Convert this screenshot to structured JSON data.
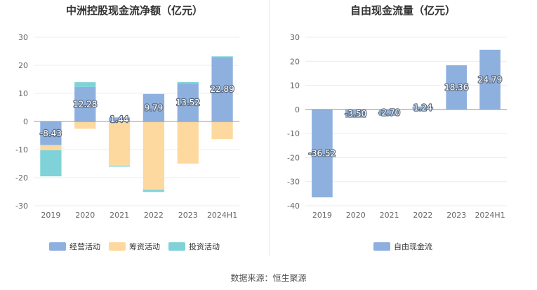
{
  "colors": {
    "operating": "#8eb0de",
    "financing": "#fdd9a0",
    "investing": "#7fd3d8",
    "free_cash_flow": "#8eb0de",
    "grid": "#ececec",
    "axis_text": "#666666"
  },
  "source": "数据来源：恒生聚源",
  "chart_data": [
    {
      "type": "bar",
      "stacked": true,
      "title": "中洲控股现金流净额（亿元）",
      "categories": [
        "2019",
        "2020",
        "2021",
        "2022",
        "2023",
        "2024H1"
      ],
      "yticks": [
        30,
        20,
        10,
        0,
        -10,
        -20,
        -30
      ],
      "ylim": [
        -30,
        30
      ],
      "series": [
        {
          "name": "经营活动",
          "key": "operating",
          "values": [
            -8.43,
            12.28,
            1.44,
            9.79,
            13.52,
            22.89
          ],
          "labels": [
            "-8.43",
            "12.28",
            "1.44",
            "9.79",
            "13.52",
            "22.89"
          ]
        },
        {
          "name": "筹资活动",
          "key": "financing",
          "values": [
            -1.8,
            -2.6,
            -15.8,
            -24.3,
            -15.0,
            -6.3
          ]
        },
        {
          "name": "投资活动",
          "key": "investing",
          "values": [
            -9.3,
            1.7,
            -0.3,
            -0.8,
            0.5,
            0.3
          ]
        }
      ],
      "legend": [
        "经营活动",
        "筹资活动",
        "投资活动"
      ]
    },
    {
      "type": "bar",
      "title": "自由现金流量（亿元）",
      "categories": [
        "2019",
        "2020",
        "2021",
        "2022",
        "2023",
        "2024H1"
      ],
      "yticks": [
        30,
        20,
        10,
        0,
        -10,
        -20,
        -30,
        -40
      ],
      "ylim": [
        -40,
        30
      ],
      "series": [
        {
          "name": "自由现金流",
          "key": "free_cash_flow",
          "values": [
            -36.52,
            -3.5,
            -2.7,
            1.24,
            18.36,
            24.79
          ],
          "labels": [
            "-36.52",
            "-3.50",
            "-2.70",
            "1.24",
            "18.36",
            "24.79"
          ]
        }
      ],
      "legend": [
        "自由现金流"
      ]
    }
  ]
}
